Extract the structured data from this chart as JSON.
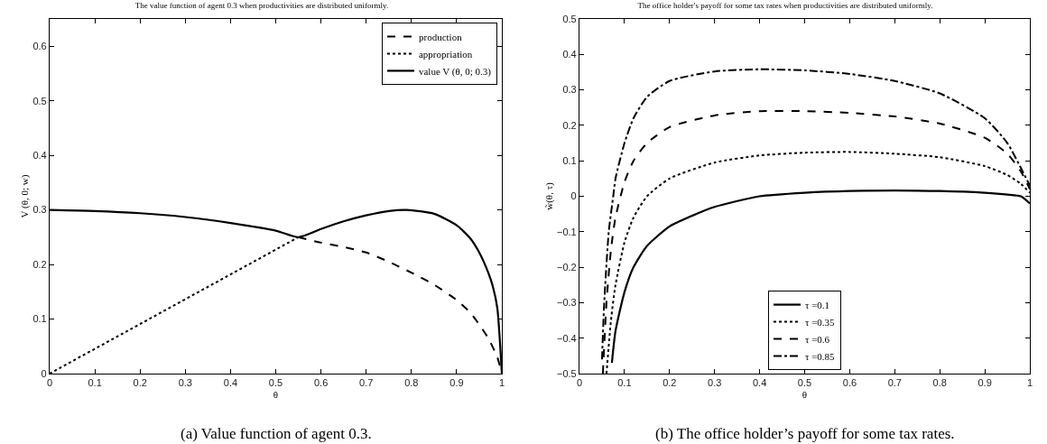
{
  "chart_data": [
    {
      "type": "line",
      "title": "The value function of agent 0.3 when productivities are distributed uniformly.",
      "xlabel": "θ",
      "ylabel": "V (θ, 0; w)",
      "annotations": [
        "(a) Value function of agent 0.3."
      ],
      "xlim": [
        0,
        1
      ],
      "ylim": [
        0,
        0.65
      ],
      "xticks": [
        0,
        0.1,
        0.2,
        0.3,
        0.4,
        0.5,
        0.6,
        0.7,
        0.8,
        0.9,
        1
      ],
      "yticks": [
        0,
        0.1,
        0.2,
        0.3,
        0.4,
        0.5,
        0.6
      ],
      "grid": false,
      "legend": "top right",
      "series": [
        {
          "name": "production",
          "color": "#000000",
          "line_style": "dashed",
          "x": [
            0.55,
            0.6,
            0.65,
            0.7,
            0.75,
            0.8,
            0.85,
            0.9,
            0.93,
            0.95,
            0.97,
            0.99,
            1
          ],
          "values": [
            0.25,
            0.24,
            0.232,
            0.222,
            0.205,
            0.185,
            0.163,
            0.135,
            0.112,
            0.09,
            0.065,
            0.03,
            0
          ]
        },
        {
          "name": "appropriation",
          "color": "#000000",
          "line_style": "dotted",
          "x": [
            0,
            0.55
          ],
          "values": [
            0,
            0.25
          ]
        },
        {
          "name": "value V (θ, 0; 0.3)",
          "color": "#000000",
          "line_style": "solid",
          "x": [
            0,
            0.1,
            0.2,
            0.3,
            0.4,
            0.5,
            0.55,
            0.6,
            0.65,
            0.7,
            0.75,
            0.79,
            0.85,
            0.9,
            0.93,
            0.95,
            0.97,
            0.98,
            0.99,
            1
          ],
          "values": [
            0.3,
            0.298,
            0.294,
            0.287,
            0.276,
            0.262,
            0.25,
            0.265,
            0.279,
            0.29,
            0.298,
            0.3,
            0.293,
            0.272,
            0.248,
            0.222,
            0.185,
            0.16,
            0.12,
            0
          ]
        }
      ]
    },
    {
      "type": "line",
      "title": "The office holder's payoff for some tax rates when productivities are distributed uniformly.",
      "xlabel": "θ",
      "ylabel": "w̃(θ, τ)",
      "annotations": [
        "(b) The office holder’s payoff for some tax rates."
      ],
      "xlim": [
        0,
        1
      ],
      "ylim": [
        -0.5,
        0.5
      ],
      "xticks": [
        0,
        0.1,
        0.2,
        0.3,
        0.4,
        0.5,
        0.6,
        0.7,
        0.8,
        0.9,
        1
      ],
      "yticks": [
        {
          "value": -0.5,
          "label": "−0.5"
        },
        {
          "value": -0.4,
          "label": "−0.4"
        },
        {
          "value": -0.3,
          "label": "−0.3"
        },
        {
          "value": -0.2,
          "label": "−0.2"
        },
        {
          "value": -0.1,
          "label": "−0.1"
        },
        0,
        0.1,
        0.2,
        0.3,
        0.4,
        0.5
      ],
      "grid": false,
      "legend": "bottom",
      "series": [
        {
          "name": "τ =0.1",
          "color": "#000000",
          "line_style": "solid",
          "x": [
            0.072,
            0.08,
            0.1,
            0.12,
            0.15,
            0.2,
            0.25,
            0.3,
            0.4,
            0.5,
            0.6,
            0.7,
            0.8,
            0.9,
            0.95,
            0.98,
            1
          ],
          "values": [
            -0.47,
            -0.38,
            -0.27,
            -0.2,
            -0.14,
            -0.085,
            -0.055,
            -0.03,
            0,
            0.01,
            0.015,
            0.016,
            0.015,
            0.01,
            0.005,
            0,
            -0.02
          ]
        },
        {
          "name": "τ =0.35",
          "color": "#000000",
          "line_style": "dotted",
          "x": [
            0.06,
            0.07,
            0.08,
            0.1,
            0.12,
            0.15,
            0.2,
            0.3,
            0.4,
            0.5,
            0.6,
            0.7,
            0.8,
            0.9,
            0.95,
            0.98,
            1
          ],
          "values": [
            -0.5,
            -0.35,
            -0.25,
            -0.13,
            -0.06,
            0,
            0.05,
            0.095,
            0.115,
            0.123,
            0.125,
            0.12,
            0.11,
            0.085,
            0.06,
            0.035,
            0.01
          ]
        },
        {
          "name": "τ =0.6",
          "color": "#000000",
          "line_style": "dashed",
          "x": [
            0.052,
            0.06,
            0.07,
            0.08,
            0.1,
            0.12,
            0.15,
            0.2,
            0.3,
            0.4,
            0.5,
            0.6,
            0.7,
            0.8,
            0.9,
            0.95,
            0.98,
            1
          ],
          "values": [
            -0.5,
            -0.3,
            -0.15,
            -0.06,
            0.04,
            0.1,
            0.15,
            0.195,
            0.228,
            0.24,
            0.24,
            0.235,
            0.225,
            0.205,
            0.165,
            0.12,
            0.07,
            0.02
          ]
        },
        {
          "name": "τ =0.85",
          "color": "#000000",
          "line_style": "dashdot",
          "x": [
            0.05,
            0.055,
            0.065,
            0.075,
            0.08,
            0.1,
            0.12,
            0.15,
            0.2,
            0.3,
            0.4,
            0.5,
            0.6,
            0.7,
            0.8,
            0.9,
            0.95,
            0.98,
            1
          ],
          "values": [
            -0.46,
            -0.3,
            -0.1,
            0,
            0.05,
            0.15,
            0.22,
            0.28,
            0.325,
            0.352,
            0.358,
            0.355,
            0.345,
            0.325,
            0.29,
            0.22,
            0.15,
            0.08,
            0.03
          ]
        }
      ]
    }
  ]
}
